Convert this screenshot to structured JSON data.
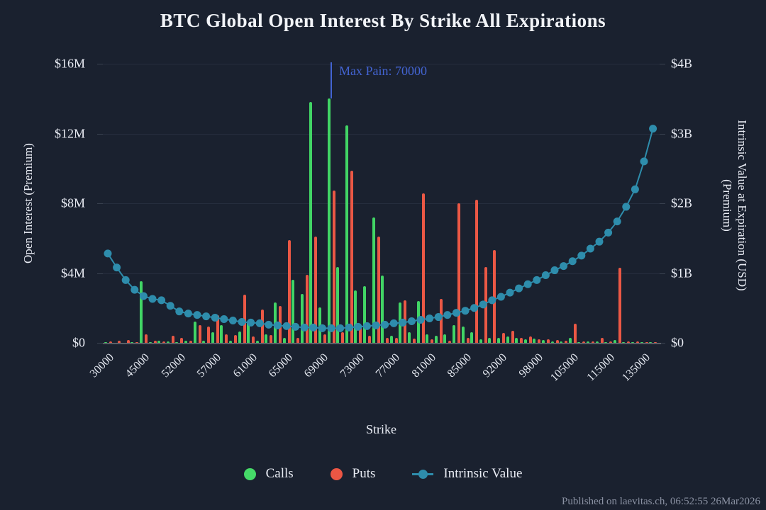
{
  "title": "BTC Global Open Interest By Strike All Expirations",
  "annotation": {
    "label": "Max Pain: 70000",
    "strike": 70000
  },
  "left_axis": {
    "title": "Open Interest (Premium)",
    "ticks": [
      "$16M",
      "$12M",
      "$8M",
      "$4M",
      "$0"
    ],
    "max": 16
  },
  "right_axis": {
    "title_line1": "Intrinsic Value at Expiration (USD)",
    "title_line2": "(Premium)",
    "ticks": [
      "$4B",
      "$3B",
      "$2B",
      "$1B",
      "$0"
    ],
    "max": 4
  },
  "x_axis": {
    "title": "Strike",
    "label_every": 4
  },
  "legend": {
    "items": [
      {
        "label": "Calls",
        "marker": "circle",
        "color": "#45da68"
      },
      {
        "label": "Puts",
        "marker": "circle",
        "color": "#ec5644"
      },
      {
        "label": "Intrinsic Value",
        "marker": "line-dot",
        "color": "#2e8dac"
      }
    ],
    "position": "bottom"
  },
  "footer": "Published on laevitas.ch, 06:52:55 26Mar2026",
  "colors": {
    "background": "#1a212f",
    "calls": "#41d565",
    "puts": "#eb5845",
    "intrinsic": "#2e8dac",
    "max_pain": "#4364d2",
    "grid": "#2a3344",
    "axis_text": "#e9ecf4",
    "muted_text": "#8a91a2"
  },
  "chart_data": {
    "type": "bar",
    "title": "BTC Global Open Interest By Strike All Expirations",
    "xlabel": "Strike",
    "left_ylabel": "Open Interest (Premium)",
    "right_ylabel": "Intrinsic Value at Expiration (USD) (Premium)",
    "left_ylim": [
      0,
      16000000
    ],
    "right_ylim": [
      0,
      4000000000
    ],
    "grid": true,
    "legend_position": "bottom",
    "categories": [
      30000,
      35000,
      40000,
      42000,
      45000,
      46000,
      48000,
      50000,
      52000,
      54000,
      55000,
      56000,
      57000,
      58000,
      59000,
      60000,
      61000,
      62000,
      63000,
      64000,
      65000,
      66000,
      67000,
      68000,
      69000,
      70000,
      71000,
      72000,
      73000,
      74000,
      75000,
      76000,
      77000,
      78000,
      79000,
      80000,
      81000,
      82000,
      83000,
      84000,
      85000,
      86000,
      88000,
      90000,
      92000,
      94000,
      95000,
      96000,
      98000,
      100000,
      102000,
      104000,
      105000,
      106000,
      108000,
      110000,
      115000,
      120000,
      125000,
      130000,
      135000,
      140000
    ],
    "series": [
      {
        "name": "Calls",
        "type": "bar",
        "axis": "left",
        "unit": "$M",
        "color": "#41d565",
        "values": [
          0.05,
          0,
          0,
          0.06,
          3.55,
          0.05,
          0.12,
          0.1,
          0.06,
          0.12,
          1.2,
          0.12,
          0.6,
          1.0,
          0.12,
          0.65,
          1.25,
          0.12,
          0.5,
          2.3,
          0.3,
          3.6,
          2.8,
          13.8,
          2.05,
          14.0,
          4.35,
          12.45,
          3.0,
          3.25,
          7.2,
          3.85,
          0.4,
          2.3,
          0.6,
          2.4,
          0.5,
          0.4,
          0.5,
          1.0,
          0.95,
          0.6,
          0.2,
          0.3,
          0.3,
          0.35,
          0.3,
          0.2,
          0.25,
          0.18,
          0.1,
          0.1,
          0.3,
          0.05,
          0.1,
          0.08,
          0.05,
          0.15,
          0.06,
          0.04,
          0.05,
          0.02
        ]
      },
      {
        "name": "Puts",
        "type": "bar",
        "axis": "left",
        "unit": "$M",
        "color": "#eb5845",
        "values": [
          0.1,
          0.12,
          0.18,
          0.05,
          0.5,
          0.12,
          0.1,
          0.42,
          0.28,
          0.12,
          1.0,
          0.92,
          1.6,
          0.5,
          0.45,
          2.75,
          0.38,
          1.9,
          0.45,
          2.1,
          5.9,
          0.3,
          3.9,
          6.1,
          0.5,
          8.75,
          0.6,
          9.85,
          0.95,
          0.4,
          6.1,
          0.3,
          0.3,
          2.45,
          0.25,
          8.55,
          0.2,
          2.5,
          0.12,
          8.0,
          0.3,
          8.2,
          4.35,
          5.3,
          0.55,
          0.7,
          0.28,
          0.38,
          0.2,
          0.22,
          0.15,
          0.12,
          1.1,
          0.1,
          0.08,
          0.3,
          0.1,
          4.3,
          0.1,
          0.08,
          0.06,
          0.05
        ]
      },
      {
        "name": "Intrinsic Value",
        "type": "line",
        "axis": "right",
        "unit": "$B",
        "color": "#2e8dac",
        "values": [
          1.28,
          1.08,
          0.9,
          0.76,
          0.67,
          0.63,
          0.61,
          0.53,
          0.45,
          0.42,
          0.4,
          0.38,
          0.36,
          0.34,
          0.32,
          0.3,
          0.29,
          0.28,
          0.26,
          0.25,
          0.24,
          0.23,
          0.22,
          0.22,
          0.21,
          0.21,
          0.21,
          0.22,
          0.23,
          0.24,
          0.25,
          0.26,
          0.28,
          0.29,
          0.31,
          0.33,
          0.35,
          0.37,
          0.4,
          0.43,
          0.46,
          0.5,
          0.55,
          0.61,
          0.66,
          0.72,
          0.78,
          0.84,
          0.9,
          0.97,
          1.04,
          1.1,
          1.17,
          1.25,
          1.35,
          1.45,
          1.58,
          1.74,
          1.95,
          2.2,
          2.6,
          3.07
        ]
      }
    ]
  }
}
